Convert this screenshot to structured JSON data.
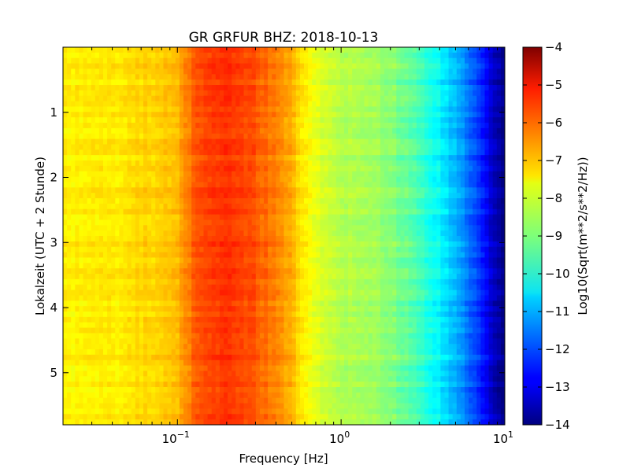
{
  "chart_data": {
    "type": "heatmap",
    "title": "GR GRFUR BHZ: 2018-10-13",
    "xlabel": "Frequency [Hz]",
    "ylabel": "Lokalzeit (UTC + 2 Stunde)",
    "x_scale": "log",
    "xlim": [
      0.02,
      10
    ],
    "ylim": [
      0,
      5.8
    ],
    "y_inverted": true,
    "x_ticks": [
      {
        "value": 0.1,
        "base": "10",
        "exp": "−1"
      },
      {
        "value": 1,
        "base": "10",
        "exp": "0"
      },
      {
        "value": 10,
        "base": "10",
        "exp": "1"
      }
    ],
    "y_ticks": [
      1,
      2,
      3,
      4,
      5
    ],
    "colorbar": {
      "label": "Log10(Sqrt(m**2/s**2/Hz))",
      "range": [
        -14,
        -4
      ],
      "ticks": [
        "−4",
        "−5",
        "−6",
        "−7",
        "−8",
        "−9",
        "−10",
        "−11",
        "−12",
        "−13",
        "−14"
      ],
      "colormap": "jet"
    },
    "spectrum_profile": {
      "frequency_hz": [
        0.02,
        0.03,
        0.05,
        0.07,
        0.1,
        0.13,
        0.16,
        0.2,
        0.25,
        0.3,
        0.4,
        0.5,
        0.65,
        0.8,
        1,
        1.5,
        2,
        3,
        4,
        5,
        6,
        7,
        8,
        9,
        10
      ],
      "log10_psd": [
        -7.6,
        -7.6,
        -7.5,
        -7.3,
        -7.1,
        -6.1,
        -5.8,
        -5.7,
        -5.85,
        -6.1,
        -6.5,
        -7.0,
        -7.8,
        -8.25,
        -8.45,
        -8.6,
        -8.9,
        -9.6,
        -10.3,
        -11.0,
        -11.6,
        -12.3,
        -13.0,
        -13.6,
        -14.0
      ]
    },
    "grid": false,
    "legend": "none"
  }
}
